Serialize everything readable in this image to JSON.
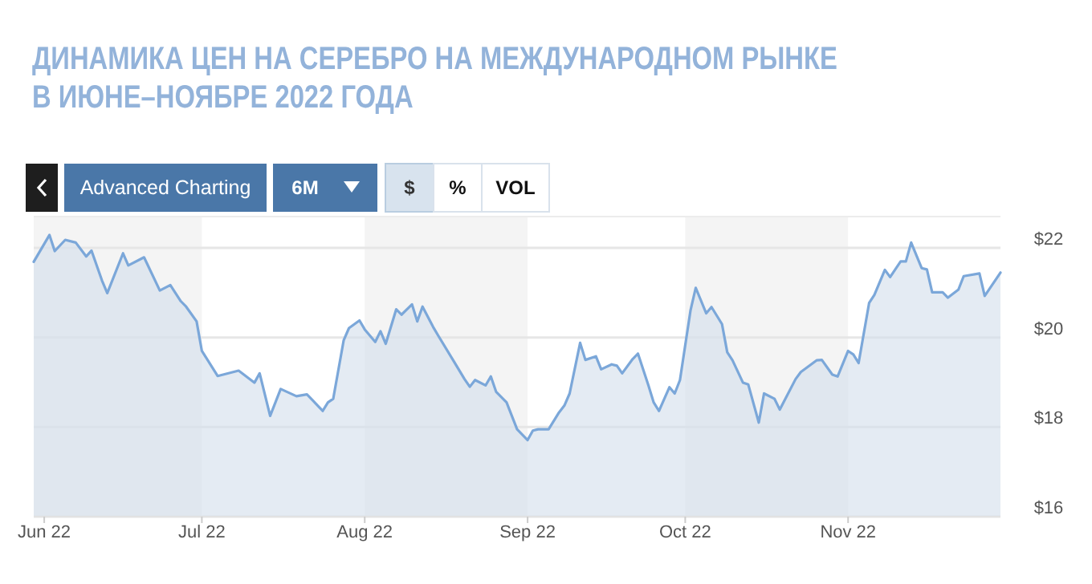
{
  "chart_data": {
    "type": "area",
    "title": "ДИНАМИКА ЦЕН НА СЕРЕБРО НА МЕЖДУНАРОДНОМ РЫНКЕ\nВ ИЮНЕ–НОЯБРЕ 2022 ГОДА",
    "x": [
      "2022-05-30",
      "2022-06-02",
      "2022-06-03",
      "2022-06-05",
      "2022-06-07",
      "2022-06-09",
      "2022-06-10",
      "2022-06-12",
      "2022-06-13",
      "2022-06-16",
      "2022-06-17",
      "2022-06-20",
      "2022-06-23",
      "2022-06-25",
      "2022-06-27",
      "2022-06-28",
      "2022-06-30",
      "2022-07-01",
      "2022-07-04",
      "2022-07-08",
      "2022-07-11",
      "2022-07-12",
      "2022-07-14",
      "2022-07-16",
      "2022-07-19",
      "2022-07-21",
      "2022-07-22",
      "2022-07-24",
      "2022-07-25",
      "2022-07-26",
      "2022-07-28",
      "2022-07-29",
      "2022-07-31",
      "2022-08-01",
      "2022-08-03",
      "2022-08-04",
      "2022-08-05",
      "2022-08-07",
      "2022-08-08",
      "2022-08-10",
      "2022-08-11",
      "2022-08-12",
      "2022-08-14",
      "2022-08-15",
      "2022-08-18",
      "2022-08-20",
      "2022-08-21",
      "2022-08-22",
      "2022-08-24",
      "2022-08-25",
      "2022-08-26",
      "2022-08-28",
      "2022-08-30",
      "2022-09-01",
      "2022-09-02",
      "2022-09-03",
      "2022-09-05",
      "2022-09-07",
      "2022-09-08",
      "2022-09-09",
      "2022-09-11",
      "2022-09-12",
      "2022-09-14",
      "2022-09-15",
      "2022-09-17",
      "2022-09-18",
      "2022-09-19",
      "2022-09-21",
      "2022-09-22",
      "2022-09-24",
      "2022-09-25",
      "2022-09-26",
      "2022-09-28",
      "2022-09-29",
      "2022-09-30",
      "2022-10-02",
      "2022-10-03",
      "2022-10-05",
      "2022-10-06",
      "2022-10-08",
      "2022-10-09",
      "2022-10-10",
      "2022-10-12",
      "2022-10-13",
      "2022-10-15",
      "2022-10-16",
      "2022-10-18",
      "2022-10-19",
      "2022-10-22",
      "2022-10-23",
      "2022-10-26",
      "2022-10-27",
      "2022-10-29",
      "2022-10-30",
      "2022-11-01",
      "2022-11-02",
      "2022-11-03",
      "2022-11-05",
      "2022-11-06",
      "2022-11-08",
      "2022-11-09",
      "2022-11-11",
      "2022-11-12",
      "2022-11-13",
      "2022-11-15",
      "2022-11-16",
      "2022-11-17",
      "2022-11-19",
      "2022-11-20",
      "2022-11-22",
      "2022-11-23",
      "2022-11-26",
      "2022-11-27",
      "2022-11-30"
    ],
    "series": [
      {
        "color": "#7ba7d9",
        "values": [
          21.69,
          22.29,
          21.93,
          22.18,
          22.12,
          21.81,
          21.94,
          21.27,
          20.99,
          21.88,
          21.61,
          21.79,
          21.05,
          21.17,
          20.81,
          20.69,
          20.36,
          19.7,
          19.14,
          19.26,
          18.99,
          19.2,
          18.25,
          18.85,
          18.69,
          18.73,
          18.61,
          18.36,
          18.55,
          18.63,
          19.94,
          20.21,
          20.38,
          20.18,
          19.9,
          20.14,
          19.86,
          20.63,
          20.51,
          20.74,
          20.36,
          20.69,
          20.24,
          20.04,
          19.46,
          19.07,
          18.9,
          19.05,
          18.93,
          19.13,
          18.79,
          18.55,
          17.95,
          17.71,
          17.92,
          17.95,
          17.95,
          18.33,
          18.48,
          18.75,
          19.88,
          19.5,
          19.58,
          19.29,
          19.4,
          19.37,
          19.2,
          19.52,
          19.64,
          18.93,
          18.55,
          18.36,
          18.89,
          18.75,
          19.05,
          20.6,
          21.11,
          20.54,
          20.68,
          20.3,
          19.67,
          19.49,
          18.99,
          18.95,
          18.1,
          18.75,
          18.63,
          18.39,
          19.07,
          19.23,
          19.49,
          19.5,
          19.17,
          19.13,
          19.7,
          19.62,
          19.43,
          20.77,
          20.95,
          21.51,
          21.35,
          21.7,
          21.7,
          22.12,
          21.55,
          21.52,
          21.01,
          21.01,
          20.89,
          21.07,
          21.37,
          21.43,
          20.93,
          21.45
        ]
      }
    ],
    "xlim": [
      "2022-05-30",
      "2022-11-30"
    ],
    "xticks": [
      {
        "value": "2022-06-01",
        "label": "Jun 22"
      },
      {
        "value": "2022-07-01",
        "label": "Jul 22"
      },
      {
        "value": "2022-08-01",
        "label": "Aug 22"
      },
      {
        "value": "2022-09-01",
        "label": "Sep 22"
      },
      {
        "value": "2022-10-01",
        "label": "Oct 22"
      },
      {
        "value": "2022-11-01",
        "label": "Nov 22"
      }
    ],
    "ylim": [
      16,
      22.7
    ],
    "yticks": [
      {
        "value": 16,
        "label": "$16"
      },
      {
        "value": 18,
        "label": "$18"
      },
      {
        "value": 20,
        "label": "$20"
      },
      {
        "value": 22,
        "label": "$22"
      }
    ],
    "grid": "y",
    "bands": [
      {
        "axis": "x",
        "from": "2022-05-30",
        "to": "2022-07-01",
        "color": "#f4f4f4"
      },
      {
        "axis": "x",
        "from": "2022-08-01",
        "to": "2022-09-01",
        "color": "#f4f4f4"
      },
      {
        "axis": "x",
        "from": "2022-10-01",
        "to": "2022-11-01",
        "color": "#f4f4f4"
      }
    ],
    "annotations": [
      "Advanced Charting",
      "6M",
      "$",
      "%",
      "VOL"
    ]
  }
}
